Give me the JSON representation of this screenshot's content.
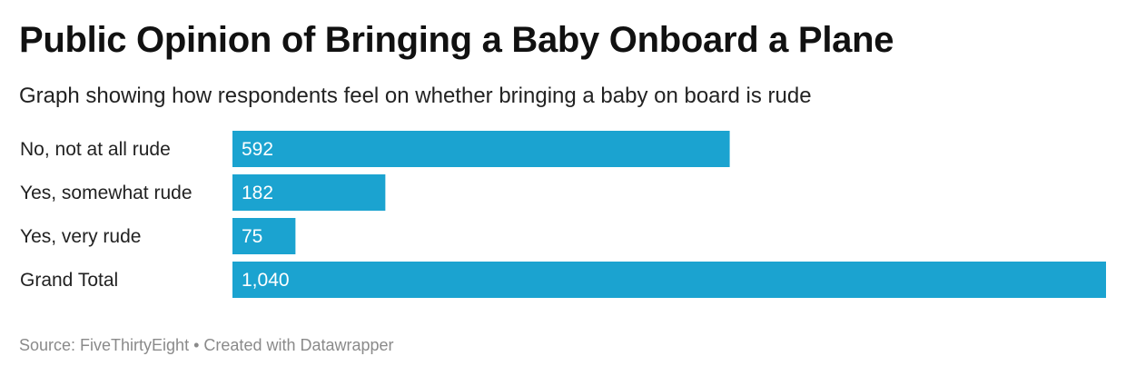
{
  "chart_data": {
    "type": "bar",
    "orientation": "horizontal",
    "title": "Public Opinion of Bringing a Baby Onboard a Plane",
    "subtitle": "Graph showing how respondents feel on whether bringing a baby on board is rude",
    "categories": [
      "No, not at all rude",
      "Yes, somewhat rude",
      "Yes, very rude",
      "Grand Total"
    ],
    "values": [
      592,
      182,
      75,
      1040
    ],
    "value_labels": [
      "592",
      "182",
      "75",
      "1,040"
    ],
    "xlim": [
      0,
      1040
    ],
    "grid": false,
    "bar_color": "#1ba3d0"
  },
  "footer": {
    "source": "Source: FiveThirtyEight",
    "separator": "•",
    "credit": "Created with Datawrapper"
  }
}
